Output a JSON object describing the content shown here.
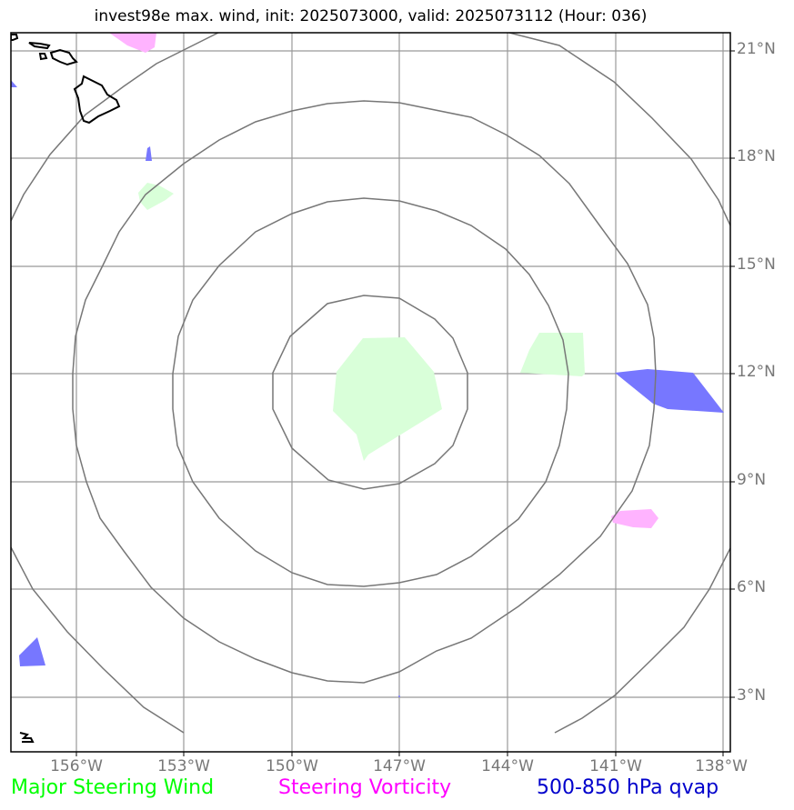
{
  "title": "invest98e max. wind, init: 2025073000, valid: 2025073112 (Hour: 036)",
  "lat_labels": [
    "21°N",
    "18°N",
    "15°N",
    "12°N",
    "9°N",
    "6°N",
    "3°N"
  ],
  "lon_labels": [
    "156°W",
    "153°W",
    "150°W",
    "147°W",
    "144°W",
    "141°W",
    "138°W"
  ],
  "legend": {
    "wind": {
      "label": "Major Steering Wind",
      "color": "#00ff00"
    },
    "vorticity": {
      "label": "Steering Vorticity",
      "color": "#ff00ff"
    },
    "qvap": {
      "label": "500-850 hPa qvap",
      "color": "#0000cc"
    }
  },
  "colors": {
    "wind_fill": "#d9ffd9",
    "vorticity_fill": "#ffb3ff",
    "qvap_fill": "#7777ff",
    "grid": "#999999",
    "rings": "#777777",
    "coast": "#000000"
  },
  "map_extent": {
    "lon_min": -157.8,
    "lon_max": -137.8,
    "lat_min": 1.5,
    "lat_max": 21.5
  },
  "grid": true,
  "icons": [
    "hawaii-coastline",
    "range-rings"
  ]
}
